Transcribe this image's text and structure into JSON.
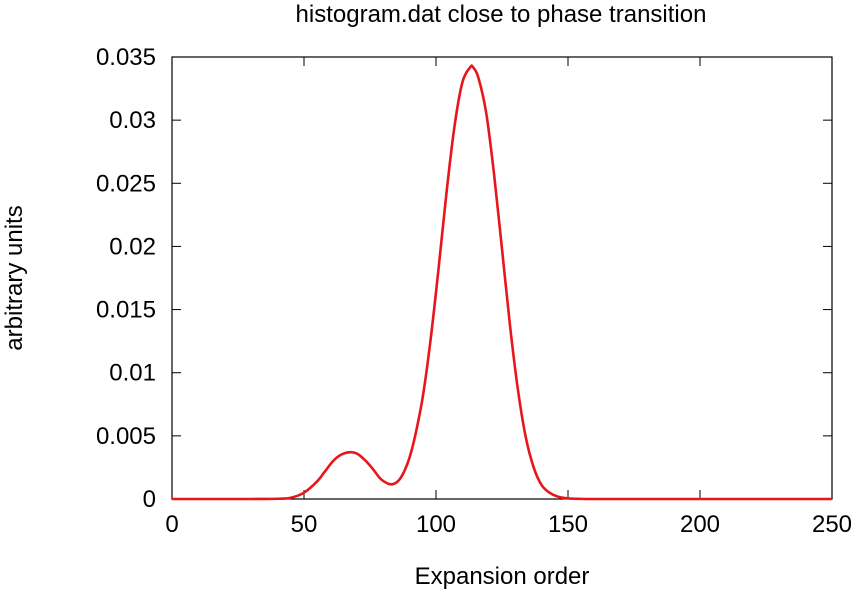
{
  "chart_data": {
    "type": "line",
    "title": "histogram.dat close to phase transition",
    "xlabel": "Expansion order",
    "ylabel": "arbitrary units",
    "xlim": [
      0,
      250
    ],
    "ylim": [
      0,
      0.035
    ],
    "xticks": [
      0,
      50,
      100,
      150,
      200,
      250
    ],
    "xtick_labels": [
      "0",
      "50",
      "100",
      "150",
      "200",
      "250"
    ],
    "yticks": [
      0,
      0.005,
      0.01,
      0.015,
      0.02,
      0.025,
      0.03,
      0.035
    ],
    "ytick_labels": [
      "0",
      "0.005",
      "0.01",
      "0.015",
      "0.02",
      "0.025",
      "0.03",
      "0.035"
    ],
    "grid": false,
    "legend": "none",
    "series": [
      {
        "color": "#e8161b",
        "x": [
          0,
          20,
          30,
          40,
          45,
          50,
          55,
          58,
          61,
          64,
          67,
          70,
          73,
          76,
          79,
          82,
          84,
          86,
          88,
          90,
          92,
          95,
          98,
          101,
          104,
          107,
          110,
          113,
          114,
          116,
          119,
          122,
          125,
          128,
          131,
          134,
          137,
          140,
          143,
          146,
          150,
          155,
          160,
          170,
          200,
          250
        ],
        "y": [
          0,
          0,
          0,
          2e-05,
          0.0001,
          0.0005,
          0.0014,
          0.0022,
          0.003,
          0.0035,
          0.0037,
          0.0036,
          0.0031,
          0.0024,
          0.0016,
          0.0012,
          0.0012,
          0.0015,
          0.0022,
          0.0033,
          0.0049,
          0.0081,
          0.0127,
          0.0183,
          0.0243,
          0.0295,
          0.033,
          0.0342,
          0.0342,
          0.0334,
          0.0306,
          0.0257,
          0.0198,
          0.0138,
          0.0087,
          0.0049,
          0.0025,
          0.0011,
          0.0005,
          0.0002,
          5e-05,
          1e-05,
          0,
          0,
          0,
          0
        ]
      }
    ]
  }
}
